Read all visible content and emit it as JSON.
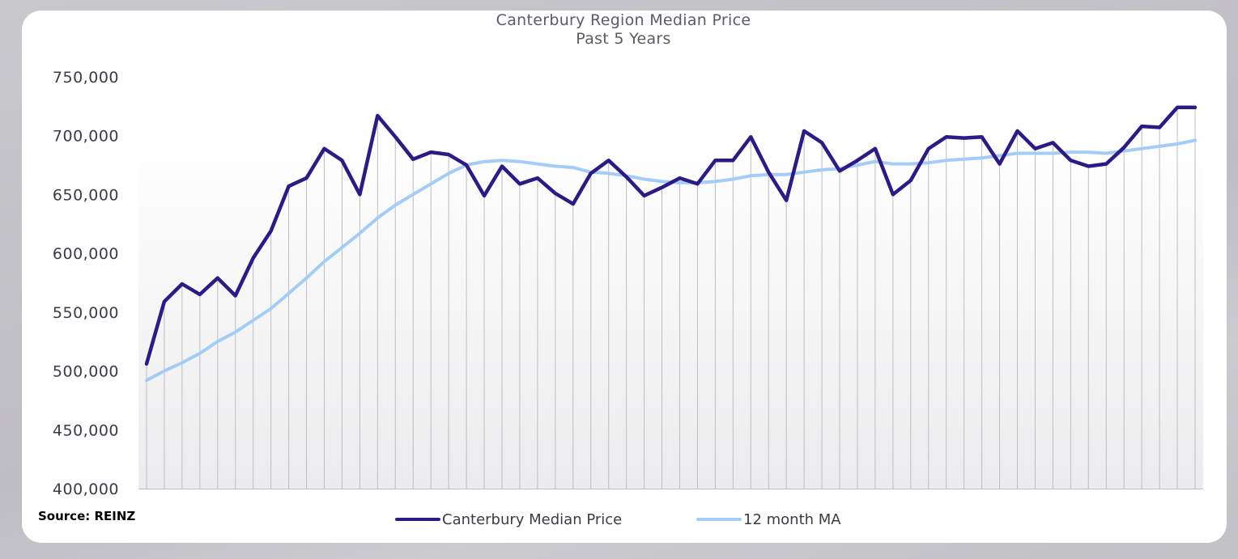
{
  "chart_data": {
    "type": "line",
    "title": "Canterbury Region Median Price",
    "subtitle": "Past 5 Years",
    "source": "Source: REINZ",
    "ylim": [
      400000,
      750000
    ],
    "y_ticks": [
      400000,
      450000,
      500000,
      550000,
      600000,
      650000,
      700000,
      750000
    ],
    "y_tick_labels": [
      "400,000",
      "450,000",
      "500,000",
      "550,000",
      "600,000",
      "650,000",
      "700,000",
      "750,000"
    ],
    "num_points": 60,
    "series": [
      {
        "name": "Canterbury Median Price",
        "color": "#2e1a87",
        "values": [
          506000,
          559000,
          574000,
          565000,
          579000,
          564000,
          596000,
          619000,
          657000,
          664000,
          689000,
          679000,
          650000,
          717000,
          699000,
          680000,
          686000,
          684000,
          675000,
          649000,
          674000,
          659000,
          664000,
          651000,
          642000,
          668000,
          679000,
          665000,
          649000,
          656000,
          664000,
          659000,
          679000,
          679000,
          699000,
          669000,
          645000,
          704000,
          694000,
          670000,
          679000,
          689000,
          650000,
          662000,
          689000,
          699000,
          698000,
          699000,
          676000,
          704000,
          689000,
          694000,
          679000,
          674000,
          676000,
          690000,
          708000,
          707000,
          724000,
          724000
        ]
      },
      {
        "name": "12 month MA",
        "color": "#a3cdf7",
        "values": [
          492000,
          500000,
          507000,
          515000,
          525000,
          533000,
          543000,
          553000,
          566000,
          579000,
          593000,
          605000,
          617000,
          630000,
          641000,
          650000,
          659000,
          668000,
          675000,
          678000,
          679000,
          678000,
          676000,
          674000,
          673000,
          669000,
          668000,
          666000,
          663000,
          661000,
          660000,
          660000,
          661000,
          663000,
          666000,
          667000,
          667000,
          669000,
          671000,
          672000,
          675000,
          678000,
          676000,
          676000,
          677000,
          679000,
          680000,
          681000,
          683000,
          685000,
          685000,
          685000,
          686000,
          686000,
          685000,
          687000,
          689000,
          691000,
          693000,
          696000
        ]
      }
    ]
  }
}
